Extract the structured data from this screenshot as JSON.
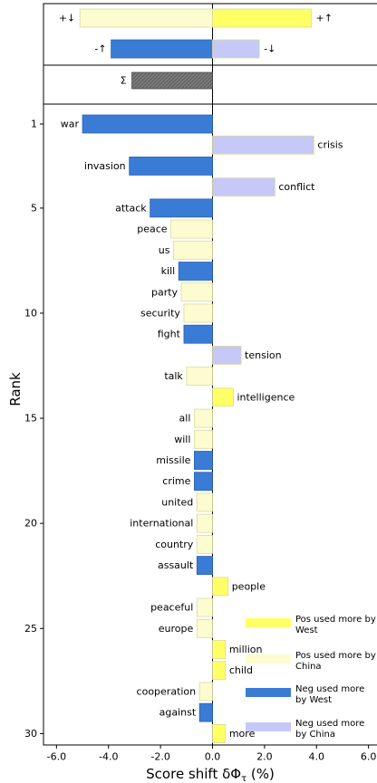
{
  "chart_data": {
    "type": "bar",
    "orientation": "horizontal",
    "xlabel": "Score shift δΦ",
    "xlabel_sub": "τ",
    "xlabel_suffix": " (%)",
    "ylabel": "Rank",
    "xlim": [
      -6.5,
      6.5
    ],
    "x_ticks": [
      -6.0,
      -4.0,
      -2.0,
      0.0,
      2.0,
      4.0,
      6.0
    ],
    "x_tick_labels": [
      "-6.0",
      "-4.0",
      "-2.0",
      "0.0",
      "2.0",
      "4.0",
      "6.0"
    ],
    "y_ticks": [
      1,
      5,
      10,
      15,
      20,
      25,
      30
    ],
    "colors": {
      "pos_west": "#ffff66",
      "pos_china": "#fdfcd0",
      "neg_west": "#3a7bd5",
      "neg_china": "#c6c9f7",
      "total": "#666666"
    },
    "summary": [
      {
        "label": "+↓",
        "value": -5.1,
        "category": "pos_china",
        "label_side": "left"
      },
      {
        "label": "+↑",
        "value": 3.8,
        "category": "pos_west",
        "label_side": "right"
      },
      {
        "label": "-↑",
        "value": -3.9,
        "category": "neg_west",
        "label_side": "left"
      },
      {
        "label": "-↓",
        "value": 1.8,
        "category": "neg_china",
        "label_side": "right"
      }
    ],
    "total": {
      "label": "Σ",
      "value": -3.1
    },
    "words": [
      {
        "rank": 1,
        "word": "war",
        "value": -5.0,
        "category": "neg_west"
      },
      {
        "rank": 2,
        "word": "crisis",
        "value": 3.9,
        "category": "neg_china"
      },
      {
        "rank": 3,
        "word": "invasion",
        "value": -3.2,
        "category": "neg_west"
      },
      {
        "rank": 4,
        "word": "conflict",
        "value": 2.4,
        "category": "neg_china"
      },
      {
        "rank": 5,
        "word": "attack",
        "value": -2.4,
        "category": "neg_west"
      },
      {
        "rank": 6,
        "word": "peace",
        "value": -1.6,
        "category": "pos_china"
      },
      {
        "rank": 7,
        "word": "us",
        "value": -1.5,
        "category": "pos_china"
      },
      {
        "rank": 8,
        "word": "kill",
        "value": -1.3,
        "category": "neg_west"
      },
      {
        "rank": 9,
        "word": "party",
        "value": -1.2,
        "category": "pos_china"
      },
      {
        "rank": 10,
        "word": "security",
        "value": -1.1,
        "category": "pos_china"
      },
      {
        "rank": 11,
        "word": "fight",
        "value": -1.1,
        "category": "neg_west"
      },
      {
        "rank": 12,
        "word": "tension",
        "value": 1.1,
        "category": "neg_china"
      },
      {
        "rank": 13,
        "word": "talk",
        "value": -1.0,
        "category": "pos_china"
      },
      {
        "rank": 14,
        "word": "intelligence",
        "value": 0.8,
        "category": "pos_west"
      },
      {
        "rank": 15,
        "word": "all",
        "value": -0.7,
        "category": "pos_china"
      },
      {
        "rank": 16,
        "word": "will",
        "value": -0.7,
        "category": "pos_china"
      },
      {
        "rank": 17,
        "word": "missile",
        "value": -0.7,
        "category": "neg_west"
      },
      {
        "rank": 18,
        "word": "crime",
        "value": -0.7,
        "category": "neg_west"
      },
      {
        "rank": 19,
        "word": "united",
        "value": -0.6,
        "category": "pos_china"
      },
      {
        "rank": 20,
        "word": "international",
        "value": -0.6,
        "category": "pos_china"
      },
      {
        "rank": 21,
        "word": "country",
        "value": -0.6,
        "category": "pos_china"
      },
      {
        "rank": 22,
        "word": "assault",
        "value": -0.6,
        "category": "neg_west"
      },
      {
        "rank": 23,
        "word": "people",
        "value": 0.6,
        "category": "pos_west"
      },
      {
        "rank": 24,
        "word": "peaceful",
        "value": -0.6,
        "category": "pos_china"
      },
      {
        "rank": 25,
        "word": "europe",
        "value": -0.6,
        "category": "pos_china"
      },
      {
        "rank": 26,
        "word": "million",
        "value": 0.5,
        "category": "pos_west"
      },
      {
        "rank": 27,
        "word": "child",
        "value": 0.5,
        "category": "pos_west"
      },
      {
        "rank": 28,
        "word": "cooperation",
        "value": -0.5,
        "category": "pos_china"
      },
      {
        "rank": 29,
        "word": "against",
        "value": -0.5,
        "category": "neg_west"
      },
      {
        "rank": 30,
        "word": "more",
        "value": 0.5,
        "category": "pos_west"
      }
    ],
    "legend": {
      "placement": "bottom-right",
      "entries": [
        {
          "category": "pos_west",
          "lines": [
            "Pos used more by",
            "West"
          ]
        },
        {
          "category": "pos_china",
          "lines": [
            "Pos used more by",
            "China"
          ]
        },
        {
          "category": "neg_west",
          "lines": [
            "Neg used more",
            "by West"
          ]
        },
        {
          "category": "neg_china",
          "lines": [
            "Neg used more",
            "by China"
          ]
        }
      ]
    }
  }
}
